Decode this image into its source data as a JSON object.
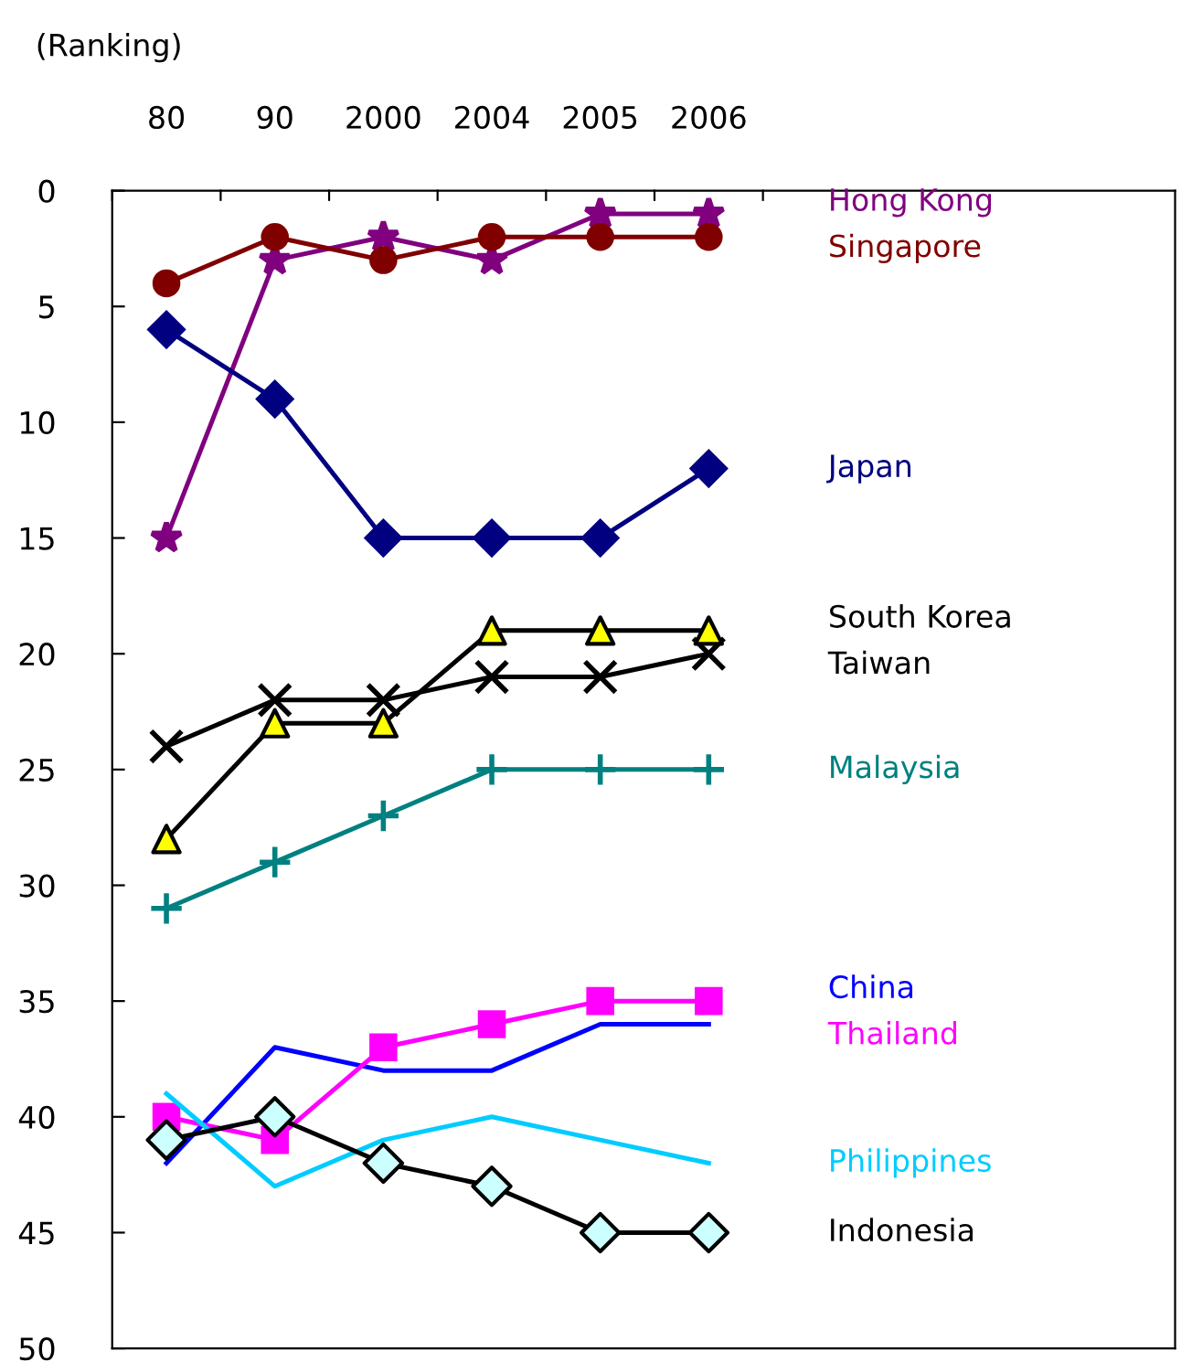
{
  "chart_data": {
    "type": "line",
    "ylabel": "(Ranking)",
    "categories": [
      "80",
      "90",
      "2000",
      "2004",
      "2005",
      "2006"
    ],
    "ylim": [
      50,
      0
    ],
    "yticks": [
      0,
      5,
      10,
      15,
      20,
      25,
      30,
      35,
      40,
      45,
      50
    ],
    "grid": false,
    "legend": false,
    "line_style": "solid",
    "series": [
      {
        "name": "Hong Kong",
        "color": "#800080",
        "marker": "star",
        "values": [
          15,
          3,
          2,
          3,
          1,
          1
        ]
      },
      {
        "name": "Singapore",
        "color": "#800000",
        "marker": "circle",
        "values": [
          4,
          2,
          3,
          2,
          2,
          2
        ]
      },
      {
        "name": "Japan",
        "color": "#000080",
        "marker": "diamond",
        "values": [
          6,
          9,
          15,
          15,
          15,
          12
        ]
      },
      {
        "name": "South Korea",
        "color": "#000000",
        "marker": "cross",
        "values": [
          24,
          22,
          22,
          21,
          21,
          20
        ]
      },
      {
        "name": "Taiwan",
        "color": "#000000",
        "marker": "triangle",
        "colors": [
          "#ffff00",
          "#ffff00",
          "#ffff00",
          "#ffff00",
          "#ffff00",
          "#ffff00"
        ],
        "values": [
          28,
          23,
          23,
          19,
          19,
          19
        ]
      },
      {
        "name": "Malaysia",
        "color": "#008080",
        "marker": "plus",
        "values": [
          31,
          29,
          27,
          25,
          25,
          25
        ]
      },
      {
        "name": "China",
        "color": "#0000ff",
        "marker": "none",
        "values": [
          42,
          37,
          38,
          38,
          36,
          36
        ]
      },
      {
        "name": "Thailand",
        "color": "#ff00ff",
        "marker": "square",
        "values": [
          40,
          41,
          37,
          36,
          35,
          35
        ]
      },
      {
        "name": "Philippines",
        "color": "#00ccff",
        "marker": "none",
        "values": [
          39,
          43,
          41,
          40,
          41,
          42
        ]
      },
      {
        "name": "Indonesia",
        "color": "#000000",
        "marker": "diamond",
        "colors": [
          "#ccffff",
          "#ccffff",
          "#ccffff",
          "#ccffff",
          "#ccffff",
          "#ccffff"
        ],
        "values": [
          41,
          40,
          42,
          43,
          45,
          45
        ]
      }
    ]
  }
}
